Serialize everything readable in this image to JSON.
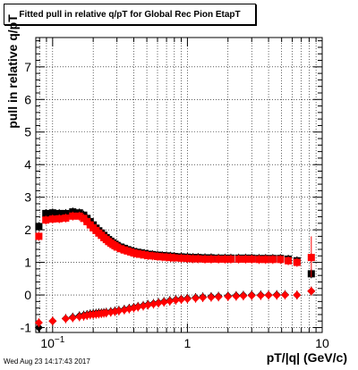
{
  "chart_data": {
    "type": "scatter",
    "title": "Fitted pull in relative q/pT for Global Rec Pion EtapT",
    "xlabel": "pT/|q| (GeV/c)",
    "ylabel": "pull in relative q/pT",
    "xscale": "log",
    "xlim": [
      0.075,
      10
    ],
    "ylim": [
      -1.15,
      7.9
    ],
    "grid": true,
    "x_tick_labels": [
      {
        "value": 0.1,
        "label": "10",
        "exp": "−1"
      },
      {
        "value": 1,
        "label": "1",
        "exp": ""
      },
      {
        "value": 10,
        "label": "10",
        "exp": ""
      }
    ],
    "y_ticks": [
      -1,
      0,
      1,
      2,
      3,
      4,
      5,
      6,
      7
    ],
    "series": [
      {
        "marker": "square",
        "color": "#000000",
        "points": [
          [
            0.079,
            2.1
          ],
          [
            0.089,
            2.5
          ],
          [
            0.1,
            2.52
          ],
          [
            0.112,
            2.5
          ],
          [
            0.125,
            2.5
          ],
          [
            0.141,
            2.55
          ],
          [
            0.158,
            2.52
          ],
          [
            0.17,
            2.45
          ],
          [
            0.18,
            2.35
          ],
          [
            0.19,
            2.25
          ],
          [
            0.2,
            2.15
          ],
          [
            0.21,
            2.05
          ],
          [
            0.22,
            1.97
          ],
          [
            0.23,
            1.9
          ],
          [
            0.24,
            1.83
          ],
          [
            0.25,
            1.76
          ],
          [
            0.26,
            1.7
          ],
          [
            0.27,
            1.65
          ],
          [
            0.28,
            1.6
          ],
          [
            0.29,
            1.56
          ],
          [
            0.3,
            1.52
          ],
          [
            0.32,
            1.47
          ],
          [
            0.34,
            1.43
          ],
          [
            0.36,
            1.39
          ],
          [
            0.38,
            1.36
          ],
          [
            0.4,
            1.33
          ],
          [
            0.42,
            1.31
          ],
          [
            0.45,
            1.29
          ],
          [
            0.48,
            1.27
          ],
          [
            0.51,
            1.25
          ],
          [
            0.55,
            1.24
          ],
          [
            0.6,
            1.22
          ],
          [
            0.65,
            1.21
          ],
          [
            0.7,
            1.2
          ],
          [
            0.75,
            1.19
          ],
          [
            0.8,
            1.18
          ],
          [
            0.9,
            1.17
          ],
          [
            1.0,
            1.16
          ],
          [
            1.1,
            1.15
          ],
          [
            1.2,
            1.15
          ],
          [
            1.35,
            1.14
          ],
          [
            1.5,
            1.14
          ],
          [
            1.7,
            1.13
          ],
          [
            1.9,
            1.13
          ],
          [
            2.1,
            1.13
          ],
          [
            2.4,
            1.13
          ],
          [
            2.7,
            1.13
          ],
          [
            3.0,
            1.13
          ],
          [
            3.4,
            1.12
          ],
          [
            3.8,
            1.12
          ],
          [
            4.3,
            1.12
          ],
          [
            4.9,
            1.12
          ],
          [
            5.6,
            1.1
          ],
          [
            6.5,
            1.05
          ],
          [
            8.3,
            0.65
          ]
        ]
      },
      {
        "marker": "square",
        "color": "#ff0000",
        "points": [
          [
            0.079,
            1.8
          ],
          [
            0.089,
            2.3
          ],
          [
            0.1,
            2.33
          ],
          [
            0.112,
            2.34
          ],
          [
            0.125,
            2.36
          ],
          [
            0.141,
            2.42
          ],
          [
            0.158,
            2.42
          ],
          [
            0.17,
            2.35
          ],
          [
            0.18,
            2.25
          ],
          [
            0.19,
            2.15
          ],
          [
            0.2,
            2.06
          ],
          [
            0.21,
            1.98
          ],
          [
            0.22,
            1.9
          ],
          [
            0.23,
            1.83
          ],
          [
            0.24,
            1.76
          ],
          [
            0.25,
            1.7
          ],
          [
            0.26,
            1.64
          ],
          [
            0.27,
            1.59
          ],
          [
            0.28,
            1.55
          ],
          [
            0.29,
            1.51
          ],
          [
            0.3,
            1.47
          ],
          [
            0.32,
            1.42
          ],
          [
            0.34,
            1.38
          ],
          [
            0.36,
            1.35
          ],
          [
            0.38,
            1.32
          ],
          [
            0.4,
            1.29
          ],
          [
            0.42,
            1.27
          ],
          [
            0.45,
            1.25
          ],
          [
            0.48,
            1.23
          ],
          [
            0.51,
            1.21
          ],
          [
            0.55,
            1.2
          ],
          [
            0.6,
            1.18
          ],
          [
            0.65,
            1.17
          ],
          [
            0.7,
            1.16
          ],
          [
            0.75,
            1.15
          ],
          [
            0.8,
            1.14
          ],
          [
            0.9,
            1.13
          ],
          [
            1.0,
            1.12
          ],
          [
            1.1,
            1.11
          ],
          [
            1.2,
            1.11
          ],
          [
            1.35,
            1.1
          ],
          [
            1.5,
            1.1
          ],
          [
            1.7,
            1.1
          ],
          [
            1.9,
            1.1
          ],
          [
            2.1,
            1.1
          ],
          [
            2.4,
            1.1
          ],
          [
            2.7,
            1.1
          ],
          [
            3.0,
            1.1
          ],
          [
            3.4,
            1.09
          ],
          [
            3.8,
            1.09
          ],
          [
            4.3,
            1.09
          ],
          [
            4.9,
            1.09
          ],
          [
            5.6,
            1.05
          ],
          [
            6.5,
            1.0
          ],
          [
            8.3,
            1.15
          ]
        ]
      },
      {
        "marker": "diamond",
        "color": "#000000",
        "points": [
          [
            0.079,
            -1.0
          ],
          [
            0.1,
            -0.8
          ],
          [
            0.125,
            -0.72
          ],
          [
            0.141,
            -0.68
          ],
          [
            0.158,
            -0.64
          ],
          [
            0.17,
            -0.62
          ],
          [
            0.18,
            -0.6
          ],
          [
            0.19,
            -0.58
          ],
          [
            0.2,
            -0.57
          ],
          [
            0.21,
            -0.56
          ],
          [
            0.22,
            -0.55
          ],
          [
            0.23,
            -0.55
          ],
          [
            0.24,
            -0.54
          ],
          [
            0.25,
            -0.53
          ],
          [
            0.27,
            -0.51
          ],
          [
            0.29,
            -0.49
          ],
          [
            0.31,
            -0.47
          ],
          [
            0.34,
            -0.44
          ],
          [
            0.37,
            -0.41
          ],
          [
            0.4,
            -0.38
          ],
          [
            0.43,
            -0.35
          ],
          [
            0.47,
            -0.32
          ],
          [
            0.51,
            -0.29
          ],
          [
            0.56,
            -0.26
          ],
          [
            0.61,
            -0.23
          ],
          [
            0.67,
            -0.2
          ],
          [
            0.74,
            -0.17
          ],
          [
            0.82,
            -0.14
          ],
          [
            0.9,
            -0.12
          ],
          [
            1.0,
            -0.1
          ],
          [
            1.15,
            -0.08
          ],
          [
            1.3,
            -0.06
          ],
          [
            1.5,
            -0.05
          ],
          [
            1.7,
            -0.04
          ],
          [
            2.0,
            -0.03
          ],
          [
            2.3,
            -0.02
          ],
          [
            2.6,
            -0.01
          ],
          [
            3.0,
            0.0
          ],
          [
            3.5,
            0.0
          ],
          [
            4.0,
            0.0
          ],
          [
            4.6,
            0.01
          ],
          [
            5.3,
            0.01
          ],
          [
            6.5,
            0.0
          ],
          [
            8.3,
            0.12
          ]
        ]
      },
      {
        "marker": "diamond",
        "color": "#ff0000",
        "points": [
          [
            0.079,
            -0.85
          ],
          [
            0.1,
            -0.8
          ],
          [
            0.125,
            -0.73
          ],
          [
            0.141,
            -0.7
          ],
          [
            0.158,
            -0.67
          ],
          [
            0.17,
            -0.65
          ],
          [
            0.18,
            -0.63
          ],
          [
            0.19,
            -0.61
          ],
          [
            0.2,
            -0.6
          ],
          [
            0.21,
            -0.59
          ],
          [
            0.22,
            -0.58
          ],
          [
            0.23,
            -0.57
          ],
          [
            0.24,
            -0.56
          ],
          [
            0.25,
            -0.55
          ],
          [
            0.27,
            -0.53
          ],
          [
            0.29,
            -0.51
          ],
          [
            0.31,
            -0.49
          ],
          [
            0.34,
            -0.46
          ],
          [
            0.37,
            -0.43
          ],
          [
            0.4,
            -0.4
          ],
          [
            0.43,
            -0.37
          ],
          [
            0.47,
            -0.34
          ],
          [
            0.51,
            -0.31
          ],
          [
            0.56,
            -0.28
          ],
          [
            0.61,
            -0.25
          ],
          [
            0.67,
            -0.22
          ],
          [
            0.74,
            -0.19
          ],
          [
            0.82,
            -0.16
          ],
          [
            0.9,
            -0.14
          ],
          [
            1.0,
            -0.12
          ],
          [
            1.15,
            -0.1
          ],
          [
            1.3,
            -0.08
          ],
          [
            1.5,
            -0.07
          ],
          [
            1.7,
            -0.06
          ],
          [
            2.0,
            -0.05
          ],
          [
            2.3,
            -0.04
          ],
          [
            2.6,
            -0.03
          ],
          [
            3.0,
            -0.02
          ],
          [
            3.5,
            -0.02
          ],
          [
            4.0,
            -0.01
          ],
          [
            4.6,
            -0.01
          ],
          [
            5.3,
            0.0
          ],
          [
            6.5,
            0.0
          ],
          [
            8.3,
            0.12
          ]
        ]
      }
    ]
  },
  "footer": "Wed Aug 23 14:17:43 2017"
}
